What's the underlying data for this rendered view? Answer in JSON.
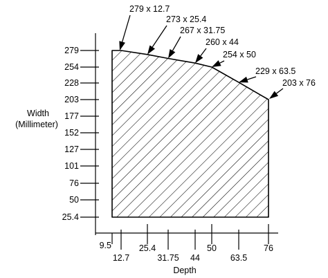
{
  "chart_data": {
    "type": "area",
    "xlabel": "Depth",
    "ylabel": [
      "Width",
      "(Millimeter)"
    ],
    "x_ticks": [
      {
        "value": 9.5,
        "label": "9.5",
        "row": 1
      },
      {
        "value": 12.7,
        "label": "12.7",
        "row": 2
      },
      {
        "value": 25.4,
        "label": "25.4",
        "row": 1
      },
      {
        "value": 31.75,
        "label": "31.75",
        "row": 2
      },
      {
        "value": 44,
        "label": "44",
        "row": 2
      },
      {
        "value": 50,
        "label": "50",
        "row": 1
      },
      {
        "value": 63.5,
        "label": "63.5",
        "row": 2
      },
      {
        "value": 76,
        "label": "76",
        "row": 1
      }
    ],
    "y_ticks": [
      {
        "value": 279,
        "label": "279"
      },
      {
        "value": 254,
        "label": "254"
      },
      {
        "value": 228,
        "label": "228"
      },
      {
        "value": 203,
        "label": "203"
      },
      {
        "value": 177,
        "label": "177"
      },
      {
        "value": 152,
        "label": "152"
      },
      {
        "value": 127,
        "label": "127"
      },
      {
        "value": 101,
        "label": "101"
      },
      {
        "value": 76,
        "label": "76"
      },
      {
        "value": 50,
        "label": "50"
      },
      {
        "value": 25.4,
        "label": "25.4"
      }
    ],
    "area_fill": "diagonal-hatch",
    "colors": {
      "line": "#000000",
      "background": "#ffffff"
    },
    "points": [
      {
        "x": 12.7,
        "y": 279,
        "label": "279 x 12.7"
      },
      {
        "x": 25.4,
        "y": 273,
        "label": "273 x 25.4"
      },
      {
        "x": 31.75,
        "y": 267,
        "label": "267 x 31.75"
      },
      {
        "x": 44,
        "y": 260,
        "label": "260 x 44"
      },
      {
        "x": 50,
        "y": 254,
        "label": "254 x 50"
      },
      {
        "x": 63.5,
        "y": 229,
        "label": "229 x 63.5"
      },
      {
        "x": 76,
        "y": 203,
        "label": "203 x 76"
      }
    ]
  }
}
